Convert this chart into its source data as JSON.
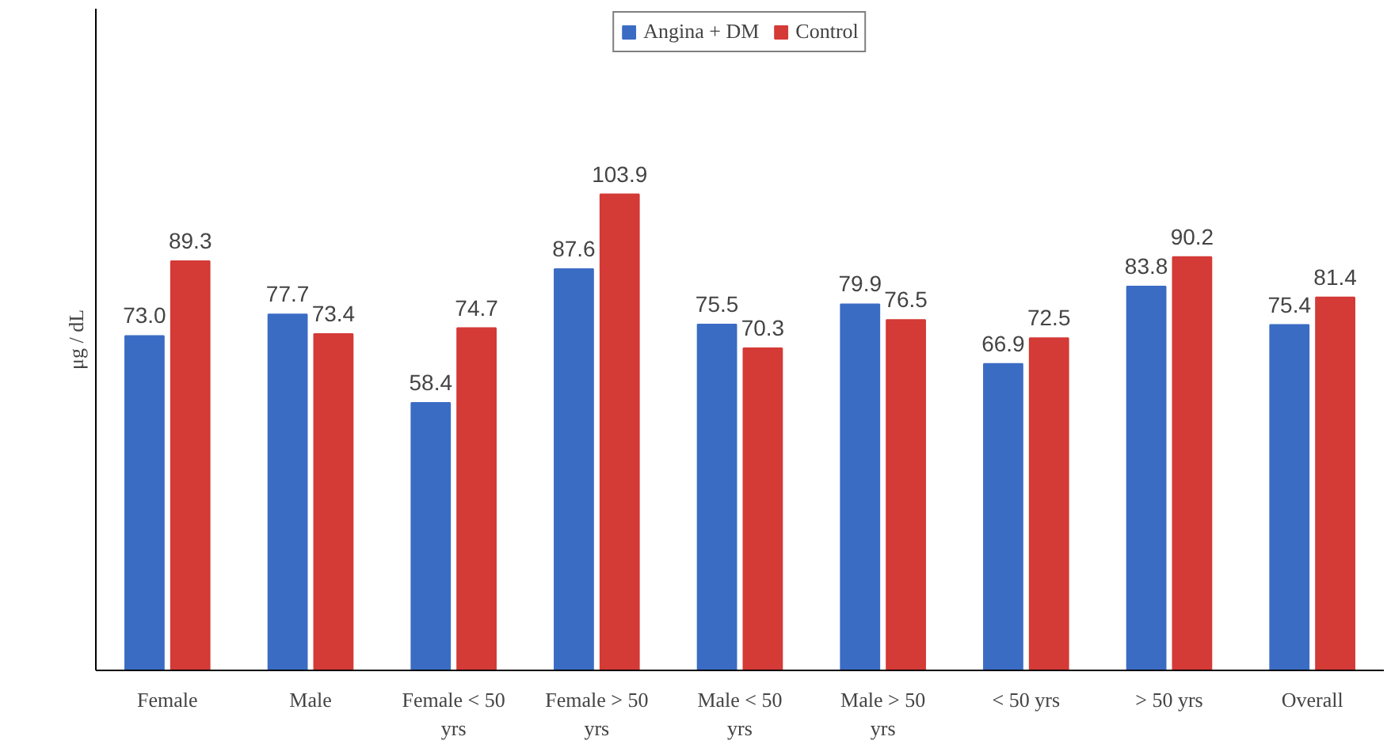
{
  "chart_data": {
    "type": "bar",
    "ylabel": "μg / dL",
    "categories": [
      "Female",
      "Male",
      "Female < 50 yrs",
      "Female > 50 yrs",
      "Male < 50 yrs",
      "Male > 50 yrs",
      "< 50 yrs",
      "> 50 yrs",
      "Overall"
    ],
    "series": [
      {
        "name": "Angina + DM",
        "color": "#3b6cc4",
        "values": [
          73.0,
          77.7,
          58.4,
          87.6,
          75.5,
          79.9,
          66.9,
          83.8,
          75.4
        ],
        "value_labels": [
          "73.0",
          "77.7",
          "58.4",
          "87.6",
          "75.5",
          "79.9",
          "66.9",
          "83.8",
          "75.4"
        ]
      },
      {
        "name": "Control",
        "color": "#d43a36",
        "values": [
          89.3,
          73.4,
          74.7,
          103.9,
          70.3,
          76.5,
          72.5,
          90.2,
          81.4
        ],
        "value_labels": [
          "89.3",
          "73.4",
          "74.7",
          "103.9",
          "70.3",
          "76.5",
          "72.5",
          "90.2",
          "81.4"
        ]
      }
    ],
    "legend": "top",
    "grid": false
  }
}
